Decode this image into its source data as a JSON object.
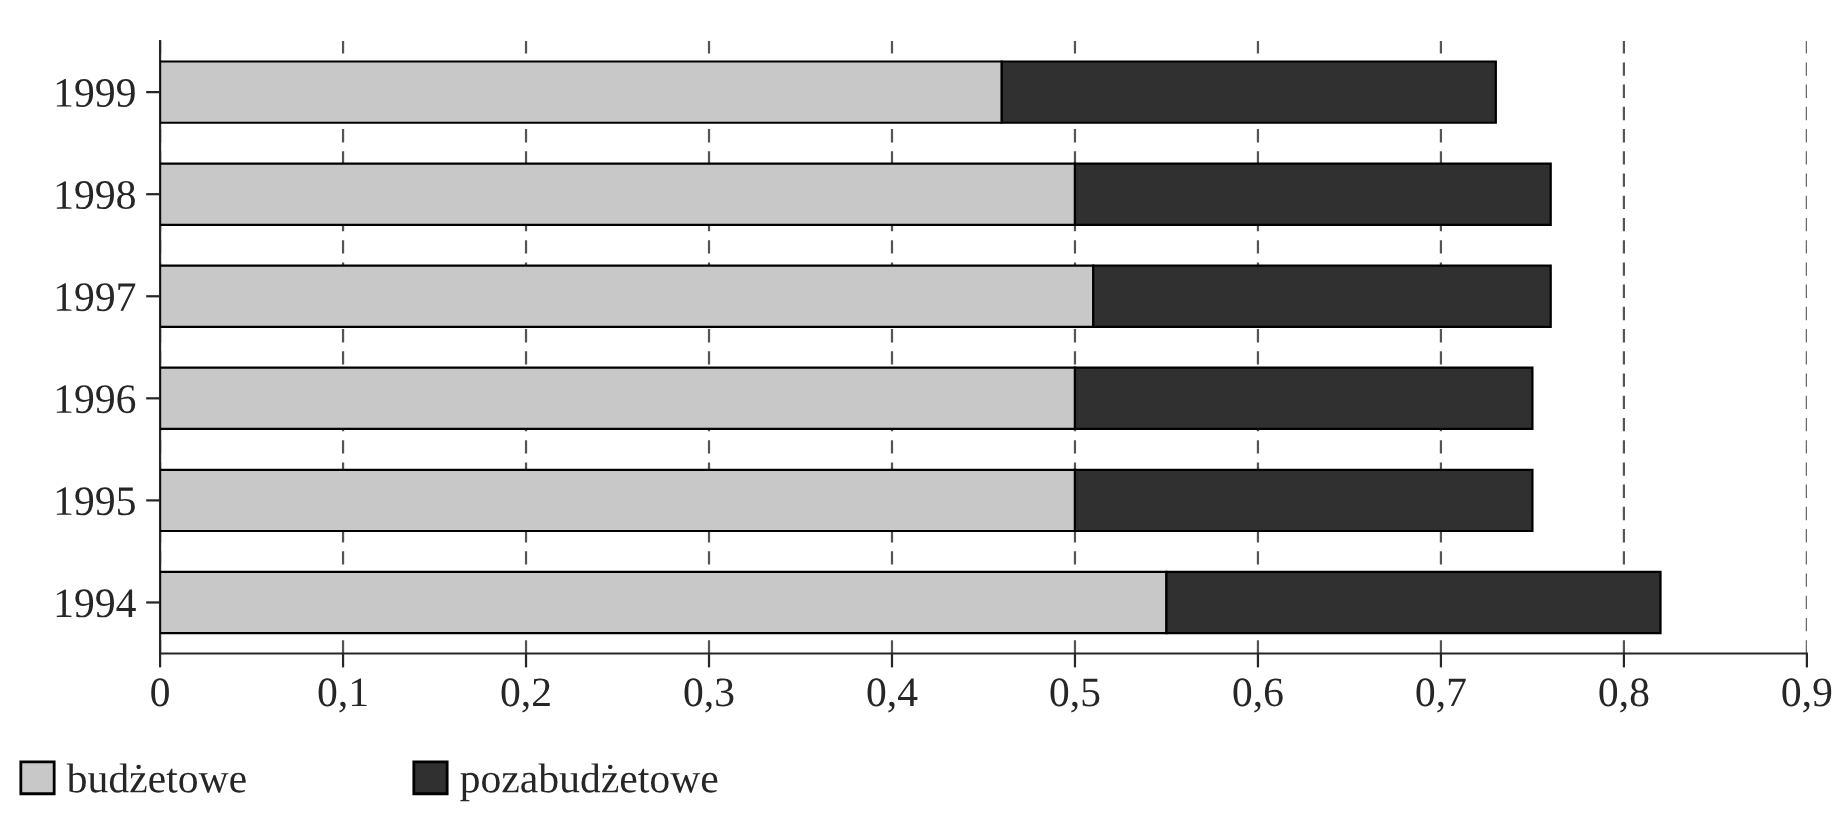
{
  "chart_data": {
    "type": "bar",
    "orientation": "horizontal",
    "stacked": true,
    "categories": [
      "1999",
      "1998",
      "1997",
      "1996",
      "1995",
      "1994"
    ],
    "series": [
      {
        "name": "budżetowe",
        "color": "#c8c8c8",
        "values": [
          0.46,
          0.5,
          0.51,
          0.5,
          0.5,
          0.55
        ]
      },
      {
        "name": "pozabudżetowe",
        "color": "#303030",
        "values": [
          0.27,
          0.26,
          0.25,
          0.25,
          0.25,
          0.27
        ]
      }
    ],
    "xlim": [
      0,
      0.9
    ],
    "xticks": [
      {
        "value": 0,
        "label": "0"
      },
      {
        "value": 0.1,
        "label": "0,1"
      },
      {
        "value": 0.2,
        "label": "0,2"
      },
      {
        "value": 0.3,
        "label": "0,3"
      },
      {
        "value": 0.4,
        "label": "0,4"
      },
      {
        "value": 0.5,
        "label": "0,5"
      },
      {
        "value": 0.6,
        "label": "0,6"
      },
      {
        "value": 0.7,
        "label": "0,7"
      },
      {
        "value": 0.8,
        "label": "0,8"
      },
      {
        "value": 0.9,
        "label": "0,9"
      }
    ],
    "grid": "x",
    "legend": "bottom left"
  }
}
